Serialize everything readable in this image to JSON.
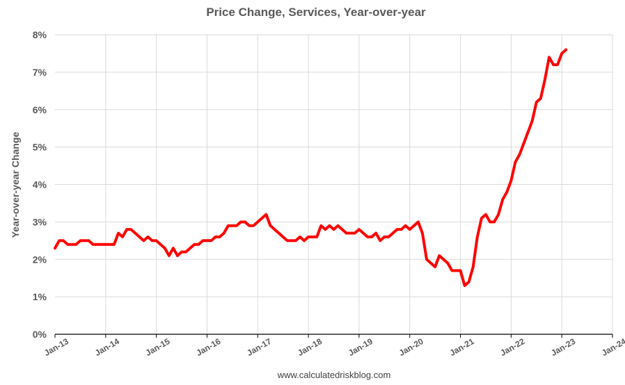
{
  "chart_data": {
    "type": "line",
    "title": "Price Change, Services, Year-over-year",
    "ylabel": "Year-over-year Change",
    "xlabel": "",
    "source": "www.calculatedriskblog.com",
    "ylim": [
      0,
      8
    ],
    "yticks": [
      "0%",
      "1%",
      "2%",
      "3%",
      "4%",
      "5%",
      "6%",
      "7%",
      "8%"
    ],
    "xticks": [
      "Jan-13",
      "Jan-14",
      "Jan-15",
      "Jan-16",
      "Jan-17",
      "Jan-18",
      "Jan-19",
      "Jan-20",
      "Jan-21",
      "Jan-22",
      "Jan-23",
      "Jan-24"
    ],
    "grid": true,
    "legend": "none",
    "line_color": "#ff0000",
    "series": [
      {
        "name": "",
        "start": "Jan-13",
        "frequency": "monthly",
        "values": [
          2.3,
          2.5,
          2.5,
          2.4,
          2.4,
          2.4,
          2.5,
          2.5,
          2.5,
          2.4,
          2.4,
          2.4,
          2.4,
          2.4,
          2.4,
          2.7,
          2.6,
          2.8,
          2.8,
          2.7,
          2.6,
          2.5,
          2.6,
          2.5,
          2.5,
          2.4,
          2.3,
          2.1,
          2.3,
          2.1,
          2.2,
          2.2,
          2.3,
          2.4,
          2.4,
          2.5,
          2.5,
          2.5,
          2.6,
          2.6,
          2.7,
          2.9,
          2.9,
          2.9,
          3.0,
          3.0,
          2.9,
          2.9,
          3.0,
          3.1,
          3.2,
          2.9,
          2.8,
          2.7,
          2.6,
          2.5,
          2.5,
          2.5,
          2.6,
          2.5,
          2.6,
          2.6,
          2.6,
          2.9,
          2.8,
          2.9,
          2.8,
          2.9,
          2.8,
          2.7,
          2.7,
          2.7,
          2.8,
          2.7,
          2.6,
          2.6,
          2.7,
          2.5,
          2.6,
          2.6,
          2.7,
          2.8,
          2.8,
          2.9,
          2.8,
          2.9,
          3.0,
          2.7,
          2.0,
          1.9,
          1.8,
          2.1,
          2.0,
          1.9,
          1.7,
          1.7,
          1.7,
          1.3,
          1.4,
          1.8,
          2.6,
          3.1,
          3.2,
          3.0,
          3.0,
          3.2,
          3.6,
          3.8,
          4.1,
          4.6,
          4.8,
          5.1,
          5.4,
          5.7,
          6.2,
          6.3,
          6.8,
          7.4,
          7.2,
          7.2,
          7.5,
          7.6
        ]
      }
    ]
  }
}
